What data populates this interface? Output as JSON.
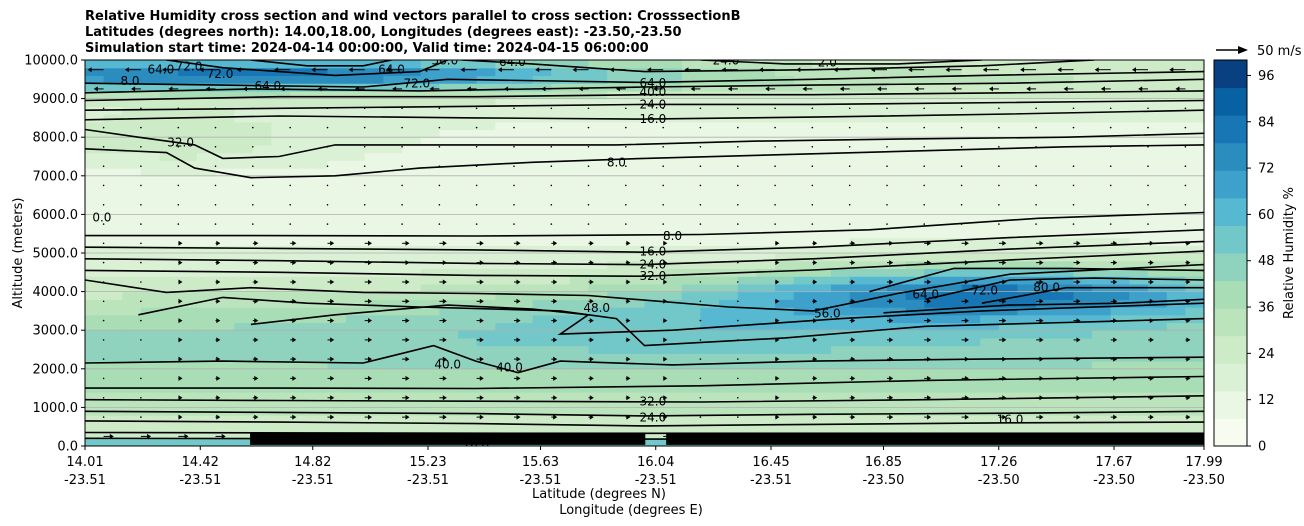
{
  "title": {
    "line1": "Relative Humidity cross section and wind vectors parallel to cross section: CrosssectionB",
    "line2": "Latitudes (degrees north): 14.00,18.00, Longitudes (degrees east): -23.50,-23.50",
    "line3": "Simulation start time: 2024-04-14 00:00:00, Valid time: 2024-04-15 06:00:00"
  },
  "chart_data": {
    "type": "heatmap",
    "title": "Relative Humidity cross section and wind vectors parallel to cross section: CrosssectionB",
    "ylabel": "Altitude (meters)",
    "xlabel_lat": "Latitude (degrees N)",
    "xlabel_lon": "Longitude (degrees E)",
    "ylim": [
      0,
      10000
    ],
    "xlim": [
      14.01,
      17.99
    ],
    "y_ticks": [
      "0.0",
      "1000.0",
      "2000.0",
      "3000.0",
      "4000.0",
      "5000.0",
      "6000.0",
      "7000.0",
      "8000.0",
      "9000.0",
      "10000.0"
    ],
    "x_ticks": [
      {
        "lat": "14.01",
        "lon": "-23.51"
      },
      {
        "lat": "14.42",
        "lon": "-23.51"
      },
      {
        "lat": "14.82",
        "lon": "-23.51"
      },
      {
        "lat": "15.23",
        "lon": "-23.51"
      },
      {
        "lat": "15.63",
        "lon": "-23.51"
      },
      {
        "lat": "16.04",
        "lon": "-23.51"
      },
      {
        "lat": "16.45",
        "lon": "-23.51"
      },
      {
        "lat": "16.85",
        "lon": "-23.50"
      },
      {
        "lat": "17.26",
        "lon": "-23.50"
      },
      {
        "lat": "17.67",
        "lon": "-23.50"
      },
      {
        "lat": "17.99",
        "lon": "-23.50"
      }
    ],
    "colorbar": {
      "label": "Relative Humidity %",
      "min": 0,
      "max": 100,
      "ticks": [
        "0",
        "12",
        "24",
        "36",
        "48",
        "60",
        "72",
        "84",
        "96"
      ],
      "colors": [
        "#f7fcf0",
        "#eaf7e4",
        "#dbf1d5",
        "#cdebc6",
        "#bbe4bc",
        "#a8ddb5",
        "#8fd3be",
        "#72c8c8",
        "#56b8d1",
        "#3ea1cb",
        "#2b8cbe",
        "#1776b3",
        "#0861a2",
        "#084081"
      ]
    },
    "quiver_key": "50 m/s",
    "contour_labels": [
      {
        "text": "64.0",
        "x": 14.28,
        "y": 9750
      },
      {
        "text": "72.0",
        "x": 14.38,
        "y": 9830
      },
      {
        "text": "72.0",
        "x": 14.49,
        "y": 9640
      },
      {
        "text": "64.0",
        "x": 14.66,
        "y": 9320
      },
      {
        "text": "8.0",
        "x": 14.17,
        "y": 9450
      },
      {
        "text": "32.0",
        "x": 14.35,
        "y": 7860
      },
      {
        "text": "0.0",
        "x": 14.07,
        "y": 5920
      },
      {
        "text": "64.0",
        "x": 15.1,
        "y": 9760
      },
      {
        "text": "56.0",
        "x": 15.29,
        "y": 9990
      },
      {
        "text": "64.0",
        "x": 15.53,
        "y": 9950
      },
      {
        "text": "72.0",
        "x": 15.19,
        "y": 9390
      },
      {
        "text": "64.0",
        "x": 16.03,
        "y": 9410
      },
      {
        "text": "40.0",
        "x": 16.03,
        "y": 9170
      },
      {
        "text": "24.0",
        "x": 16.03,
        "y": 8850
      },
      {
        "text": "16.0",
        "x": 16.03,
        "y": 8470
      },
      {
        "text": "24.0",
        "x": 16.29,
        "y": 9990
      },
      {
        "text": "2.0",
        "x": 16.65,
        "y": 9940
      },
      {
        "text": "8.0",
        "x": 15.9,
        "y": 7350
      },
      {
        "text": "8.0",
        "x": 16.1,
        "y": 5440
      },
      {
        "text": "16.0",
        "x": 16.03,
        "y": 5040
      },
      {
        "text": "24.0",
        "x": 16.03,
        "y": 4700
      },
      {
        "text": "32.0",
        "x": 16.03,
        "y": 4400
      },
      {
        "text": "48.0",
        "x": 15.83,
        "y": 3580
      },
      {
        "text": "56.0",
        "x": 16.65,
        "y": 3430
      },
      {
        "text": "64.0",
        "x": 17.0,
        "y": 3920
      },
      {
        "text": "72.0",
        "x": 17.21,
        "y": 4030
      },
      {
        "text": "80.0",
        "x": 17.43,
        "y": 4100
      },
      {
        "text": "40.0",
        "x": 15.3,
        "y": 2110
      },
      {
        "text": "40.0",
        "x": 15.52,
        "y": 2030
      },
      {
        "text": "32.0",
        "x": 16.03,
        "y": 1150
      },
      {
        "text": "24.0",
        "x": 16.03,
        "y": 740
      },
      {
        "text": "16.0",
        "x": 17.3,
        "y": 690
      },
      {
        "text": "16.0",
        "x": 15.4,
        "y": 20
      }
    ]
  }
}
